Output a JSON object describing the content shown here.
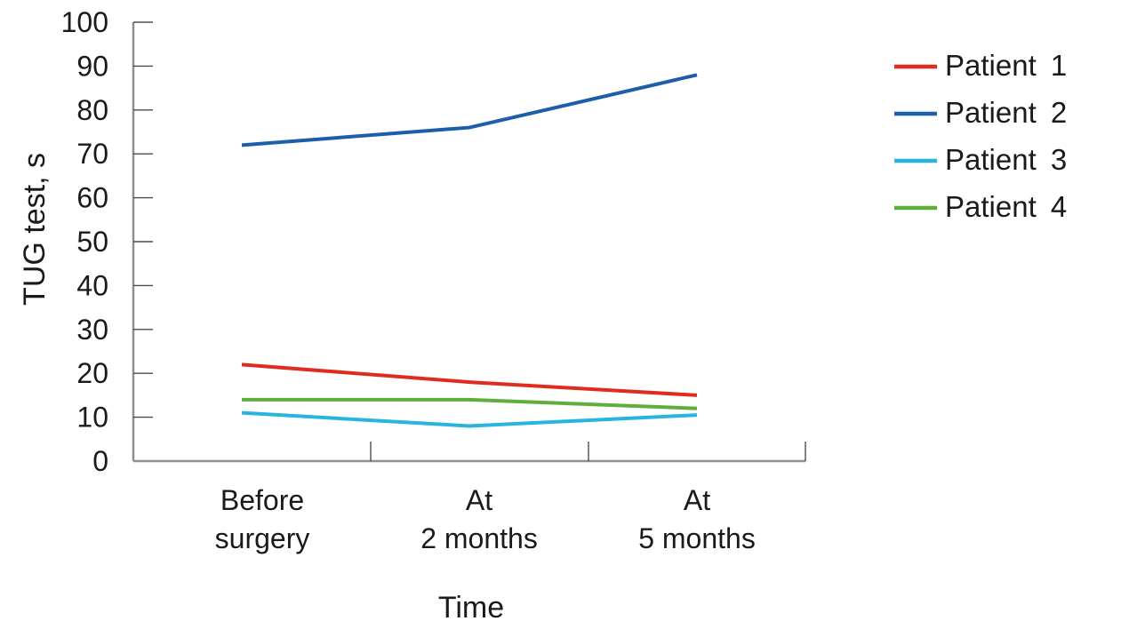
{
  "chart_data": {
    "type": "line",
    "title": "",
    "xlabel": "Time",
    "ylabel": "TUG test, s",
    "ylim": [
      0,
      100
    ],
    "ytick_step": 10,
    "grid": false,
    "legend_position": "right",
    "categories": [
      [
        "Before",
        "surgery"
      ],
      [
        "At",
        "2 months"
      ],
      [
        "At",
        "5 months"
      ]
    ],
    "series": [
      {
        "name": "Patient 1",
        "color": "#e02b20",
        "values": [
          22,
          18,
          15
        ]
      },
      {
        "name": "Patient 2",
        "color": "#1b5ea9",
        "values": [
          72,
          76,
          88
        ]
      },
      {
        "name": "Patient 3",
        "color": "#27b5e0",
        "values": [
          11,
          8,
          10.5
        ]
      },
      {
        "name": "Patient 4",
        "color": "#5fae3c",
        "values": [
          14,
          14,
          12
        ]
      }
    ]
  }
}
